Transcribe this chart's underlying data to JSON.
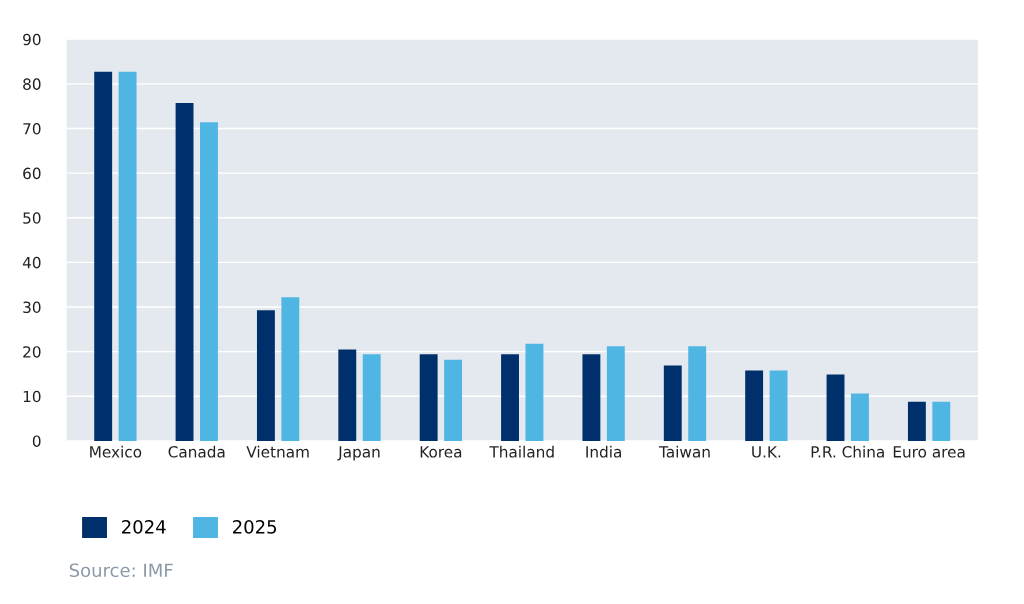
{
  "chart_data": {
    "type": "bar",
    "categories": [
      "Mexico",
      "Canada",
      "Vietnam",
      "Japan",
      "Korea",
      "Thailand",
      "India",
      "Taiwan",
      "U.K.",
      "P.R. China",
      "Euro area"
    ],
    "series": [
      {
        "name": "2024",
        "color": "#00306b",
        "values": [
          82.7,
          75.7,
          29.3,
          20.5,
          19.4,
          19.4,
          19.4,
          16.9,
          15.8,
          14.9,
          8.8
        ]
      },
      {
        "name": "2025",
        "color": "#4fb5e3",
        "values": [
          82.7,
          71.4,
          32.2,
          19.4,
          18.2,
          21.8,
          21.2,
          21.2,
          15.8,
          10.6,
          8.8
        ]
      }
    ],
    "ylim": [
      0,
      90
    ],
    "yticks": [
      0,
      10,
      20,
      30,
      40,
      50,
      60,
      70,
      80,
      90
    ],
    "grid": "y",
    "legend": "bottom left",
    "annotations": [
      "Source: IMF"
    ]
  }
}
